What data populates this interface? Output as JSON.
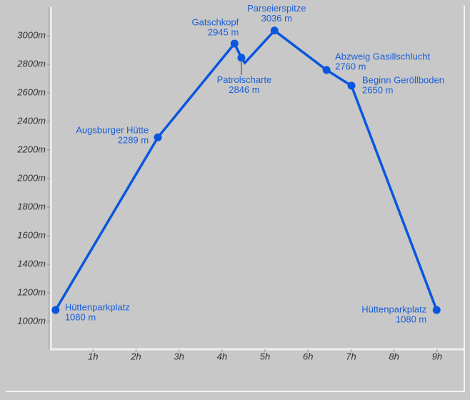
{
  "chart_data": {
    "type": "line",
    "x": [
      0.13,
      2.51,
      4.29,
      4.45,
      4.53,
      5.22,
      6.43,
      7.01,
      8.99
    ],
    "series": [
      {
        "color": "#0a56de",
        "values": [
          1080,
          2289,
          2945,
          2846,
          2810,
          3036,
          2760,
          2650,
          1080
        ],
        "point_labels": [
          "Hüttenparkplatz",
          "Augsburger Hütte",
          "Gatschkopf",
          "Patrolscharte",
          null,
          "Parseierspitze",
          "Abzweig Gasillschlucht",
          "Beginn Geröllboden",
          "Hüttenparkplatz"
        ],
        "value_labels": [
          "1080 m",
          "2289 m",
          "2945 m",
          "2846 m",
          null,
          "3036 m",
          "2760 m",
          "2650 m",
          "1080 m"
        ]
      }
    ],
    "xlim": [
      0,
      9.6
    ],
    "xticks": [
      {
        "value": 1,
        "label": "1h"
      },
      {
        "value": 2,
        "label": "2h"
      },
      {
        "value": 3,
        "label": "3h"
      },
      {
        "value": 4,
        "label": "4h"
      },
      {
        "value": 5,
        "label": "5h"
      },
      {
        "value": 6,
        "label": "6h"
      },
      {
        "value": 7,
        "label": "7h"
      },
      {
        "value": 8,
        "label": "8h"
      },
      {
        "value": 9,
        "label": "9h"
      }
    ],
    "ylim": [
      810,
      3200
    ],
    "yticks": [
      {
        "value": 1000,
        "label": "1000m"
      },
      {
        "value": 1200,
        "label": "1200m"
      },
      {
        "value": 1400,
        "label": "1400m"
      },
      {
        "value": 1600,
        "label": "1600m"
      },
      {
        "value": 1800,
        "label": "1800m"
      },
      {
        "value": 2000,
        "label": "2000m"
      },
      {
        "value": 2200,
        "label": "2200m"
      },
      {
        "value": 2400,
        "label": "2400m"
      },
      {
        "value": 2600,
        "label": "2600m"
      },
      {
        "value": 2800,
        "label": "2800m"
      },
      {
        "value": 3000,
        "label": "3000m"
      }
    ],
    "grid": false
  }
}
